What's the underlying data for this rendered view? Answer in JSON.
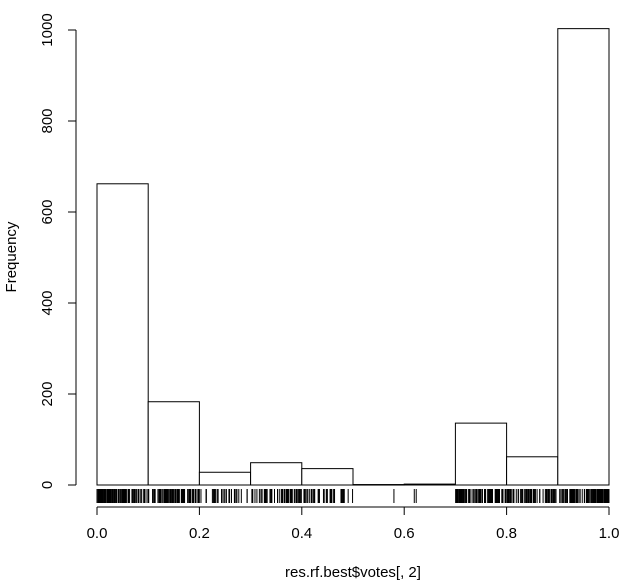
{
  "chart_data": {
    "type": "bar",
    "subtype": "histogram",
    "title": "",
    "xlabel": "res.rf.best$votes[, 2]",
    "ylabel": "Frequency",
    "xlim": [
      0,
      1
    ],
    "ylim": [
      0,
      1000
    ],
    "x_ticks": [
      "0.0",
      "0.2",
      "0.4",
      "0.6",
      "0.8",
      "1.0"
    ],
    "y_ticks": [
      "0",
      "200",
      "400",
      "600",
      "800",
      "1000"
    ],
    "bins": [
      {
        "from": 0.0,
        "to": 0.1,
        "count": 662
      },
      {
        "from": 0.1,
        "to": 0.2,
        "count": 183
      },
      {
        "from": 0.2,
        "to": 0.3,
        "count": 28
      },
      {
        "from": 0.3,
        "to": 0.4,
        "count": 49
      },
      {
        "from": 0.4,
        "to": 0.5,
        "count": 36
      },
      {
        "from": 0.5,
        "to": 0.6,
        "count": 1
      },
      {
        "from": 0.6,
        "to": 0.7,
        "count": 2
      },
      {
        "from": 0.7,
        "to": 0.8,
        "count": 136
      },
      {
        "from": 0.8,
        "to": 0.9,
        "count": 62
      },
      {
        "from": 0.9,
        "to": 1.0,
        "count": 1003
      }
    ],
    "rug": [
      {
        "from": 0.0,
        "to": 0.1,
        "count": 662
      },
      {
        "from": 0.1,
        "to": 0.2,
        "count": 183
      },
      {
        "from": 0.2,
        "to": 0.3,
        "count": 28
      },
      {
        "from": 0.3,
        "to": 0.4,
        "count": 49
      },
      {
        "from": 0.4,
        "to": 0.5,
        "count": 36
      },
      {
        "from": 0.5,
        "to": 0.6,
        "count": 1
      },
      {
        "from": 0.6,
        "to": 0.7,
        "count": 2
      },
      {
        "from": 0.7,
        "to": 0.8,
        "count": 136
      },
      {
        "from": 0.8,
        "to": 0.9,
        "count": 62
      },
      {
        "from": 0.9,
        "to": 1.0,
        "count": 1003
      }
    ],
    "grid": false
  }
}
